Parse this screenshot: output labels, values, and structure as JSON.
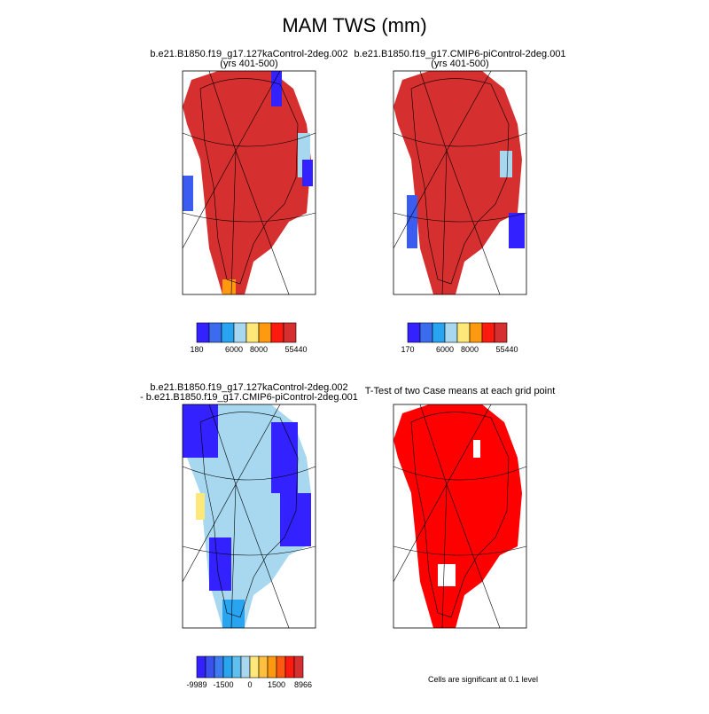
{
  "title": "MAM TWS (mm)",
  "panels": [
    {
      "title": [
        "b.e21.B1850.f19_g17.127kaControl-2deg.002",
        "(yrs 401-500)"
      ],
      "colorbar": [
        "180",
        "6000",
        "8000",
        "55440"
      ]
    },
    {
      "title": [
        "b.e21.B1850.f19_g17.CMIP6-piControl-2deg.001",
        "(yrs 401-500)"
      ],
      "colorbar": [
        "170",
        "6000",
        "8000",
        "55440"
      ]
    },
    {
      "title": [
        "b.e21.B1850.f19_g17.127kaControl-2deg.002",
        "- b.e21.B1850.f19_g17.CMIP6-piControl-2deg.001"
      ],
      "colorbar": [
        "-9989",
        "-1500",
        "0",
        "1500",
        "8966"
      ]
    },
    {
      "title": [
        "T-Test of two Case means at each grid point"
      ]
    }
  ],
  "note": "Cells are significant at 0.1 level"
}
